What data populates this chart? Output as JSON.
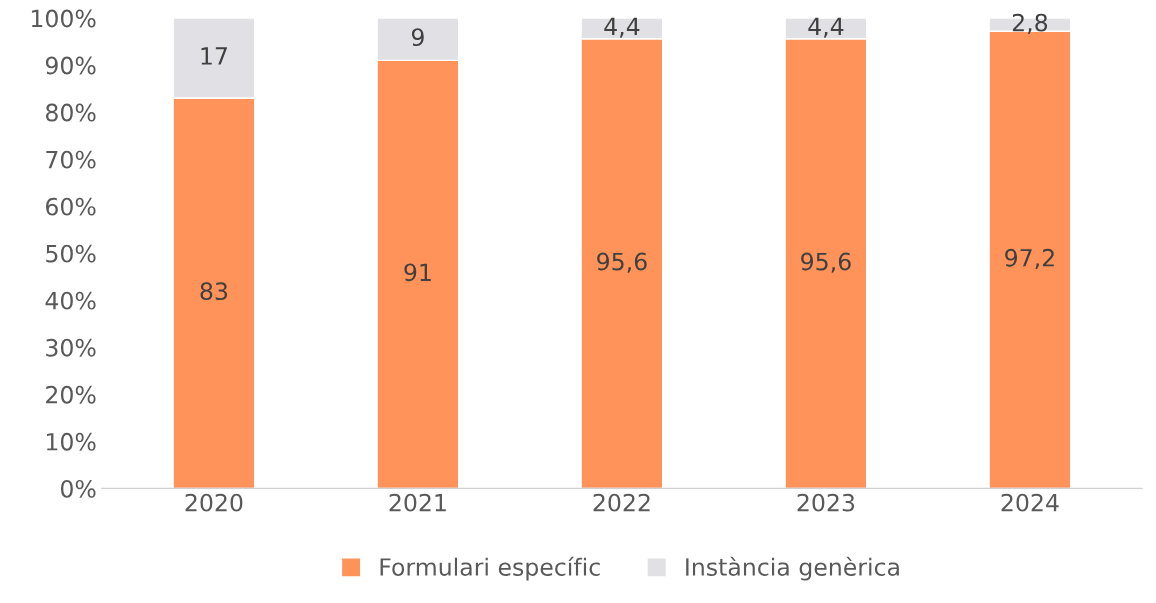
{
  "chart_data": {
    "type": "bar",
    "stacked": true,
    "categories": [
      "2020",
      "2021",
      "2022",
      "2023",
      "2024"
    ],
    "series": [
      {
        "name": "Formulari específic",
        "color": "#ff9359",
        "values": [
          83,
          91,
          95.6,
          95.6,
          97.2
        ],
        "value_labels": [
          "83",
          "91",
          "95,6",
          "95,6",
          "97,2"
        ]
      },
      {
        "name": "Instància genèrica",
        "color": "#e0e0e5",
        "values": [
          17,
          9,
          4.4,
          4.4,
          2.8
        ],
        "value_labels": [
          "17",
          "9",
          "4,4",
          "4,4",
          "2,8"
        ]
      }
    ],
    "ylim": [
      0,
      100
    ],
    "yticks": [
      {
        "value": 0,
        "label": "0%"
      },
      {
        "value": 10,
        "label": "10%"
      },
      {
        "value": 20,
        "label": "20%"
      },
      {
        "value": 30,
        "label": "30%"
      },
      {
        "value": 40,
        "label": "40%"
      },
      {
        "value": 50,
        "label": "50%"
      },
      {
        "value": 60,
        "label": "60%"
      },
      {
        "value": 70,
        "label": "70%"
      },
      {
        "value": 80,
        "label": "80%"
      },
      {
        "value": 90,
        "label": "90%"
      },
      {
        "value": 100,
        "label": "100%"
      }
    ],
    "grid": false,
    "legend": "bottom"
  }
}
